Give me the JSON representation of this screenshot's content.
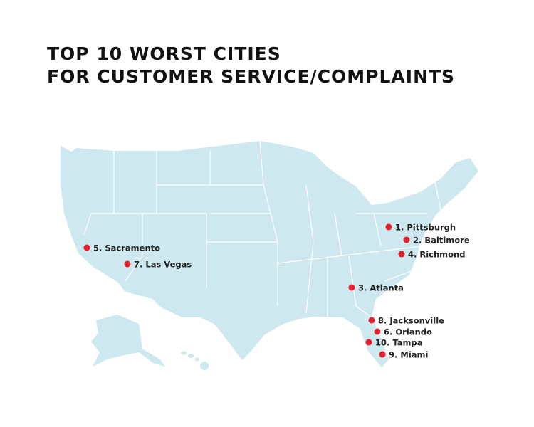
{
  "title": {
    "lines": [
      "TOP 10 WORST CITIES",
      "FOR CUSTOMER SERVICE/COMPLAINTS"
    ]
  },
  "cities": [
    {
      "label": "1. Pittsburgh"
    },
    {
      "label": "2. Baltimore"
    },
    {
      "label": "4. Richmond"
    },
    {
      "label": "5. Sacramento"
    },
    {
      "label": "7. Las Vegas"
    },
    {
      "label": "3. Atlanta"
    },
    {
      "label": "8. Jacksonville"
    },
    {
      "label": "6. Orlando"
    },
    {
      "label": "10. Tampa"
    },
    {
      "label": "9. Miami"
    }
  ]
}
